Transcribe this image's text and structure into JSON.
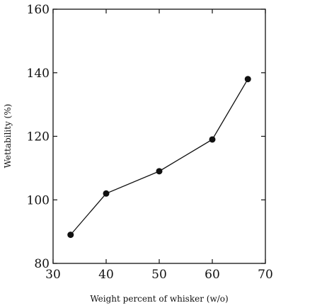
{
  "chart_data": {
    "type": "line",
    "title": "",
    "xlabel": "Weight percent of whisker (w/o)",
    "ylabel": "Wettability (%)",
    "xlim": [
      30,
      70
    ],
    "ylim": [
      80,
      160
    ],
    "xticks": [
      30,
      40,
      50,
      60,
      70
    ],
    "yticks": [
      80,
      100,
      120,
      140,
      160
    ],
    "grid": false,
    "series": [
      {
        "x": [
          33.3,
          40,
          50,
          60,
          66.7
        ],
        "y": [
          89,
          102,
          109,
          119,
          138
        ],
        "marker": "filled-circle",
        "color": "#111111"
      }
    ]
  }
}
